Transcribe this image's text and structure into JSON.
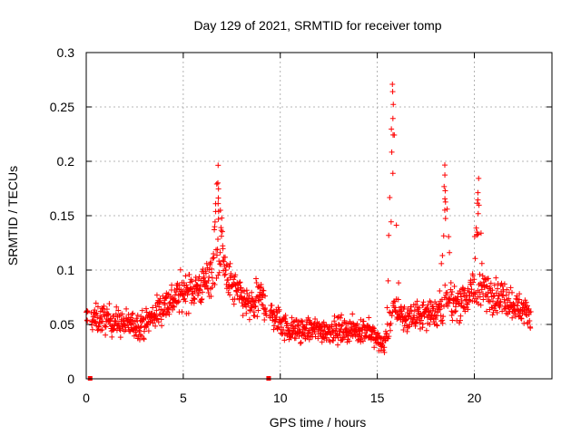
{
  "chart_data": {
    "type": "scatter",
    "title": "Day 129 of 2021, SRMTID for receiver tomp",
    "xlabel": "GPS time / hours",
    "ylabel": "SRMTID / TECUs",
    "xlim": [
      0,
      24
    ],
    "ylim": [
      0,
      0.3
    ],
    "grid": true,
    "marker": "+",
    "xticks": [
      0,
      5,
      10,
      15,
      20
    ],
    "xtick_labels": [
      "0",
      "5",
      "10",
      "15",
      "20"
    ],
    "yticks": [
      0,
      0.05,
      0.1,
      0.15,
      0.2,
      0.25,
      0.3
    ],
    "ytick_labels": [
      "0",
      "0.05",
      "0.1",
      "0.15",
      "0.2",
      "0.25",
      "0.3"
    ],
    "series": [
      {
        "name": "SRMTID",
        "color": "#ff0000",
        "profile_note": "approximate envelope read from the plotted scatter; individual points generated around these centres",
        "profile": [
          {
            "x": 0.0,
            "center": 0.055,
            "spread": 0.022
          },
          {
            "x": 1.0,
            "center": 0.055,
            "spread": 0.024
          },
          {
            "x": 2.0,
            "center": 0.05,
            "spread": 0.022
          },
          {
            "x": 3.0,
            "center": 0.05,
            "spread": 0.022
          },
          {
            "x": 4.0,
            "center": 0.068,
            "spread": 0.028
          },
          {
            "x": 5.0,
            "center": 0.08,
            "spread": 0.03
          },
          {
            "x": 6.0,
            "center": 0.085,
            "spread": 0.03
          },
          {
            "x": 6.8,
            "center": 0.11,
            "spread": 0.045
          },
          {
            "x": 7.5,
            "center": 0.085,
            "spread": 0.03
          },
          {
            "x": 8.5,
            "center": 0.065,
            "spread": 0.025
          },
          {
            "x": 9.0,
            "center": 0.075,
            "spread": 0.03
          },
          {
            "x": 9.5,
            "center": 0.06,
            "spread": 0.025
          },
          {
            "x": 10.5,
            "center": 0.045,
            "spread": 0.02
          },
          {
            "x": 12.0,
            "center": 0.045,
            "spread": 0.02
          },
          {
            "x": 13.5,
            "center": 0.045,
            "spread": 0.02
          },
          {
            "x": 14.5,
            "center": 0.045,
            "spread": 0.02
          },
          {
            "x": 15.3,
            "center": 0.03,
            "spread": 0.015
          },
          {
            "x": 15.8,
            "center": 0.065,
            "spread": 0.03
          },
          {
            "x": 16.5,
            "center": 0.055,
            "spread": 0.02
          },
          {
            "x": 17.5,
            "center": 0.06,
            "spread": 0.022
          },
          {
            "x": 18.5,
            "center": 0.065,
            "spread": 0.028
          },
          {
            "x": 19.5,
            "center": 0.075,
            "spread": 0.03
          },
          {
            "x": 20.5,
            "center": 0.08,
            "spread": 0.03
          },
          {
            "x": 21.5,
            "center": 0.075,
            "spread": 0.028
          },
          {
            "x": 22.8,
            "center": 0.06,
            "spread": 0.02
          }
        ],
        "peaks": [
          {
            "x": 6.8,
            "y": 0.2
          },
          {
            "x": 15.8,
            "y": 0.278
          },
          {
            "x": 18.5,
            "y": 0.203
          },
          {
            "x": 20.2,
            "y": 0.19
          }
        ],
        "gaps_x": [
          [
            0.1,
            0.25
          ],
          [
            9.3,
            9.45
          ]
        ],
        "x_start": 0.0,
        "x_end": 22.9
      }
    ],
    "baseline_marks_x": [
      0.2,
      9.4
    ]
  }
}
